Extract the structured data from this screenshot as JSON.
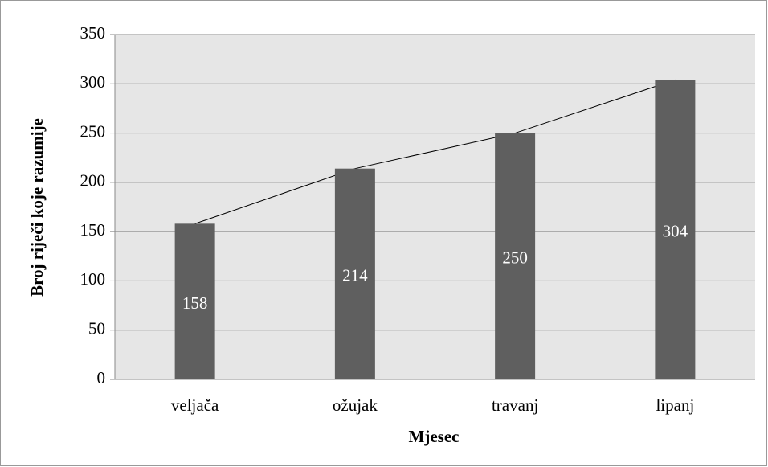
{
  "chart_data": {
    "type": "bar",
    "categories": [
      "veljača",
      "ožujak",
      "travanj",
      "lipanj"
    ],
    "values": [
      158,
      214,
      250,
      304
    ],
    "color": "#5f5f5f",
    "line": true,
    "x_label": "Mjesec",
    "y_label": "Broj riječi koje razumije",
    "ylim": [
      0,
      350
    ],
    "yticks": [
      0,
      50,
      100,
      150,
      200,
      250,
      300,
      350
    ],
    "grid": true
  }
}
